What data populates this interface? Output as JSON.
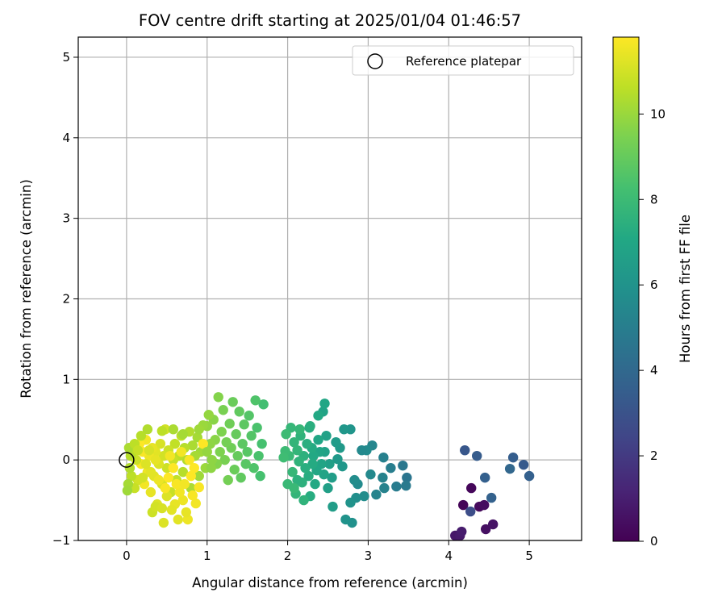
{
  "chart_data": {
    "type": "scatter",
    "title": "FOV centre drift starting at 2025/01/04 01:46:57",
    "xlabel": "Angular distance from reference (arcmin)",
    "ylabel": "Rotation from reference (arcmin)",
    "xlim": [
      -0.6,
      5.65
    ],
    "ylim": [
      -1.0,
      5.25
    ],
    "xticks": [
      0,
      1,
      2,
      3,
      4,
      5
    ],
    "xtick_labels": [
      "0",
      "1",
      "2",
      "3",
      "4",
      "5"
    ],
    "yticks": [
      -1,
      0,
      1,
      2,
      3,
      4,
      5
    ],
    "ytick_labels": [
      "−1",
      "0",
      "1",
      "2",
      "3",
      "4",
      "5"
    ],
    "grid": true,
    "legend": {
      "position": "top-right",
      "entries": [
        "Reference platepar"
      ]
    },
    "reference_point": {
      "x": 0,
      "y": 0,
      "marker": "open-circle"
    },
    "colorbar": {
      "label": "Hours from first FF file",
      "colormap": "viridis",
      "range": [
        0,
        11.8
      ],
      "ticks": [
        0,
        2,
        4,
        6,
        8,
        10
      ],
      "tick_labels": [
        "0",
        "2",
        "4",
        "6",
        "8",
        "10"
      ]
    },
    "points": [
      [
        4.18,
        -0.56,
        0.1
      ],
      [
        4.28,
        -0.35,
        0.2
      ],
      [
        4.38,
        -0.58,
        0.3
      ],
      [
        4.44,
        -0.56,
        0.4
      ],
      [
        4.46,
        -0.86,
        0.5
      ],
      [
        4.55,
        -0.8,
        0.6
      ],
      [
        4.08,
        -0.94,
        0.7
      ],
      [
        4.14,
        -0.94,
        0.8
      ],
      [
        4.16,
        -0.89,
        0.9
      ],
      [
        4.27,
        -0.64,
        2.8
      ],
      [
        4.2,
        0.12,
        3.2
      ],
      [
        4.35,
        0.05,
        3.4
      ],
      [
        4.45,
        -0.22,
        3.6
      ],
      [
        4.53,
        -0.47,
        3.7
      ],
      [
        4.76,
        -0.11,
        3.9
      ],
      [
        4.8,
        0.03,
        3.5
      ],
      [
        4.93,
        -0.06,
        3.3
      ],
      [
        5.0,
        -0.2,
        3.6
      ],
      [
        3.48,
        -0.22,
        4.6
      ],
      [
        3.47,
        -0.32,
        4.8
      ],
      [
        3.43,
        -0.07,
        4.7
      ],
      [
        3.35,
        -0.33,
        4.9
      ],
      [
        3.28,
        -0.1,
        5.0
      ],
      [
        3.19,
        0.03,
        5.1
      ],
      [
        3.18,
        -0.22,
        5.2
      ],
      [
        3.2,
        -0.35,
        5.2
      ],
      [
        3.1,
        -0.43,
        5.3
      ],
      [
        3.05,
        0.18,
        5.4
      ],
      [
        3.03,
        -0.18,
        5.5
      ],
      [
        2.98,
        0.12,
        5.6
      ],
      [
        2.95,
        -0.45,
        5.7
      ],
      [
        2.92,
        0.12,
        5.5
      ],
      [
        2.87,
        -0.3,
        5.6
      ],
      [
        2.85,
        -0.47,
        5.8
      ],
      [
        2.83,
        -0.25,
        5.7
      ],
      [
        2.8,
        -0.78,
        5.9
      ],
      [
        2.78,
        -0.53,
        6.0
      ],
      [
        2.78,
        0.38,
        6.1
      ],
      [
        2.72,
        -0.74,
        6.0
      ],
      [
        2.7,
        0.38,
        6.2
      ],
      [
        2.68,
        -0.08,
        6.2
      ],
      [
        2.65,
        0.15,
        6.3
      ],
      [
        2.62,
        0.01,
        6.3
      ],
      [
        2.6,
        0.22,
        6.4
      ],
      [
        2.56,
        -0.58,
        6.5
      ],
      [
        2.55,
        -0.22,
        6.5
      ],
      [
        2.52,
        -0.05,
        6.6
      ],
      [
        2.5,
        -0.35,
        6.6
      ],
      [
        2.48,
        0.3,
        6.7
      ],
      [
        2.46,
        0.1,
        6.7
      ],
      [
        2.45,
        -0.18,
        6.8
      ],
      [
        2.44,
        0.6,
        6.8
      ],
      [
        2.42,
        -0.05,
        6.9
      ],
      [
        2.4,
        0.1,
        6.9
      ],
      [
        2.38,
        0.25,
        7.0
      ],
      [
        2.36,
        -0.13,
        7.0
      ],
      [
        2.34,
        -0.3,
        7.1
      ],
      [
        2.32,
        0.05,
        7.1
      ],
      [
        2.31,
        -0.05,
        7.2
      ],
      [
        2.3,
        0.15,
        7.2
      ],
      [
        2.28,
        -0.45,
        7.3
      ],
      [
        2.27,
        0.4,
        7.3
      ],
      [
        2.26,
        -0.2,
        7.3
      ],
      [
        2.24,
        0.2,
        7.4
      ],
      [
        2.22,
        -0.1,
        7.4
      ],
      [
        2.2,
        0.05,
        7.5
      ],
      [
        2.18,
        -0.28,
        7.5
      ],
      [
        2.16,
        0.3,
        7.6
      ],
      [
        2.14,
        -0.02,
        7.6
      ],
      [
        2.12,
        0.12,
        7.7
      ],
      [
        2.1,
        -0.42,
        7.7
      ],
      [
        2.08,
        0.22,
        7.7
      ],
      [
        2.06,
        -0.15,
        7.8
      ],
      [
        2.04,
        0.4,
        7.8
      ],
      [
        2.02,
        0.05,
        7.9
      ],
      [
        2.0,
        -0.3,
        7.9
      ],
      [
        2.46,
        0.7,
        7.0
      ],
      [
        2.38,
        0.55,
        7.1
      ],
      [
        2.28,
        0.42,
        7.4
      ],
      [
        2.2,
        -0.5,
        7.6
      ],
      [
        2.15,
        0.38,
        7.8
      ],
      [
        2.12,
        -0.25,
        7.5
      ],
      [
        2.08,
        -0.35,
        7.9
      ],
      [
        1.97,
        0.11,
        8.0
      ],
      [
        1.95,
        0.03,
        8.1
      ],
      [
        1.98,
        0.32,
        8.0
      ],
      [
        1.7,
        0.69,
        8.2
      ],
      [
        1.68,
        0.2,
        8.3
      ],
      [
        1.66,
        -0.2,
        8.3
      ],
      [
        1.64,
        0.05,
        8.4
      ],
      [
        1.62,
        0.4,
        8.4
      ],
      [
        1.6,
        0.74,
        8.5
      ],
      [
        1.58,
        -0.1,
        8.5
      ],
      [
        1.55,
        0.3,
        8.6
      ],
      [
        1.52,
        0.55,
        8.6
      ],
      [
        1.5,
        0.1,
        8.7
      ],
      [
        1.48,
        -0.05,
        8.7
      ],
      [
        1.46,
        0.44,
        8.8
      ],
      [
        1.44,
        0.2,
        8.8
      ],
      [
        1.42,
        -0.22,
        8.9
      ],
      [
        1.4,
        0.6,
        8.9
      ],
      [
        1.38,
        0.05,
        9.0
      ],
      [
        1.36,
        0.32,
        9.0
      ],
      [
        1.34,
        -0.12,
        9.1
      ],
      [
        1.32,
        0.72,
        9.1
      ],
      [
        1.3,
        0.15,
        9.2
      ],
      [
        1.28,
        0.45,
        9.2
      ],
      [
        1.26,
        -0.25,
        9.3
      ],
      [
        1.24,
        0.22,
        9.3
      ],
      [
        1.22,
        0.0,
        9.4
      ],
      [
        1.2,
        0.62,
        9.4
      ],
      [
        1.18,
        0.35,
        9.5
      ],
      [
        1.16,
        0.1,
        9.5
      ],
      [
        1.14,
        0.78,
        9.6
      ],
      [
        1.12,
        -0.05,
        9.6
      ],
      [
        1.1,
        0.25,
        9.7
      ],
      [
        1.08,
        0.5,
        9.7
      ],
      [
        1.06,
        0.0,
        9.8
      ],
      [
        1.04,
        0.2,
        9.8
      ],
      [
        1.02,
        0.56,
        9.9
      ],
      [
        1.0,
        0.42,
        9.9
      ],
      [
        0.98,
        -0.1,
        10.0
      ],
      [
        0.95,
        0.43,
        10.0
      ],
      [
        0.92,
        0.1,
        10.1
      ],
      [
        0.9,
        -0.2,
        10.1
      ],
      [
        0.88,
        0.28,
        10.2
      ],
      [
        0.85,
        0.05,
        10.2
      ],
      [
        0.82,
        0.18,
        10.3
      ],
      [
        0.8,
        -0.35,
        10.3
      ],
      [
        0.78,
        0.35,
        10.4
      ],
      [
        0.75,
        0.0,
        10.4
      ],
      [
        0.72,
        0.15,
        10.5
      ],
      [
        0.7,
        -0.15,
        10.5
      ],
      [
        0.68,
        0.3,
        10.6
      ],
      [
        0.65,
        0.05,
        10.6
      ],
      [
        0.62,
        -0.25,
        10.7
      ],
      [
        0.6,
        0.2,
        10.7
      ],
      [
        0.58,
        0.0,
        10.8
      ],
      [
        0.55,
        -0.4,
        10.8
      ],
      [
        0.52,
        0.12,
        10.9
      ],
      [
        0.5,
        -0.1,
        10.9
      ],
      [
        0.48,
        0.38,
        11.0
      ],
      [
        0.46,
        0.05,
        11.0
      ],
      [
        0.44,
        -0.3,
        11.1
      ],
      [
        0.42,
        0.2,
        11.1
      ],
      [
        0.4,
        -0.05,
        11.2
      ],
      [
        0.38,
        -0.55,
        11.2
      ],
      [
        0.36,
        0.1,
        11.3
      ],
      [
        0.34,
        -0.2,
        11.3
      ],
      [
        0.32,
        0.15,
        11.4
      ],
      [
        0.3,
        -0.4,
        11.4
      ],
      [
        0.28,
        0.05,
        11.5
      ],
      [
        0.26,
        -0.15,
        11.5
      ],
      [
        0.24,
        0.25,
        11.6
      ],
      [
        0.22,
        -0.3,
        11.6
      ],
      [
        0.2,
        0.1,
        11.7
      ],
      [
        0.18,
        -0.05,
        11.7
      ],
      [
        0.16,
        0.2,
        11.8
      ],
      [
        0.14,
        -0.25,
        11.0
      ],
      [
        0.12,
        0.0,
        10.9
      ],
      [
        0.1,
        -0.35,
        10.8
      ],
      [
        0.08,
        0.1,
        10.7
      ],
      [
        0.06,
        -0.2,
        10.6
      ],
      [
        0.05,
        0.05,
        10.5
      ],
      [
        0.04,
        -0.1,
        10.4
      ],
      [
        0.03,
        0.15,
        10.3
      ],
      [
        0.02,
        -0.3,
        10.2
      ],
      [
        0.01,
        -0.38,
        10.1
      ],
      [
        0.1,
        0.2,
        10.6
      ],
      [
        0.18,
        0.3,
        10.5
      ],
      [
        0.26,
        0.38,
        10.4
      ],
      [
        0.32,
        -0.65,
        10.9
      ],
      [
        0.36,
        -0.58,
        11.0
      ],
      [
        0.46,
        -0.78,
        11.2
      ],
      [
        0.64,
        -0.74,
        11.3
      ],
      [
        0.76,
        -0.74,
        11.5
      ],
      [
        0.74,
        -0.65,
        11.4
      ],
      [
        0.7,
        -0.5,
        11.5
      ],
      [
        0.86,
        -0.54,
        11.6
      ],
      [
        0.82,
        -0.44,
        11.7
      ],
      [
        0.66,
        -0.4,
        11.6
      ],
      [
        0.6,
        -0.55,
        11.4
      ],
      [
        0.56,
        -0.62,
        11.3
      ],
      [
        0.5,
        -0.45,
        11.2
      ],
      [
        0.44,
        -0.6,
        11.1
      ],
      [
        0.62,
        -0.3,
        11.7
      ],
      [
        0.72,
        -0.3,
        11.6
      ],
      [
        0.8,
        -0.2,
        11.8
      ],
      [
        0.9,
        -0.34,
        11.7
      ],
      [
        0.95,
        0.2,
        11.8
      ],
      [
        0.84,
        -0.1,
        11.8
      ],
      [
        0.78,
        0.0,
        11.7
      ],
      [
        0.68,
        0.1,
        11.6
      ],
      [
        0.58,
        -0.1,
        11.8
      ],
      [
        0.52,
        -0.22,
        11.8
      ],
      [
        0.48,
        -0.35,
        11.7
      ],
      [
        0.54,
        0.05,
        11.6
      ],
      [
        0.4,
        -0.25,
        11.5
      ],
      [
        0.36,
        0.0,
        11.4
      ],
      [
        0.3,
        -0.15,
        11.3
      ],
      [
        0.24,
        -0.05,
        11.2
      ],
      [
        0.28,
        0.12,
        11.1
      ],
      [
        0.2,
        -0.22,
        11.0
      ],
      [
        0.14,
        0.12,
        10.8
      ],
      [
        0.58,
        0.38,
        10.3
      ],
      [
        0.7,
        0.32,
        10.2
      ],
      [
        0.9,
        0.38,
        10.1
      ],
      [
        1.0,
        0.1,
        9.9
      ],
      [
        1.05,
        -0.1,
        9.8
      ],
      [
        0.44,
        0.36,
        10.6
      ]
    ]
  }
}
